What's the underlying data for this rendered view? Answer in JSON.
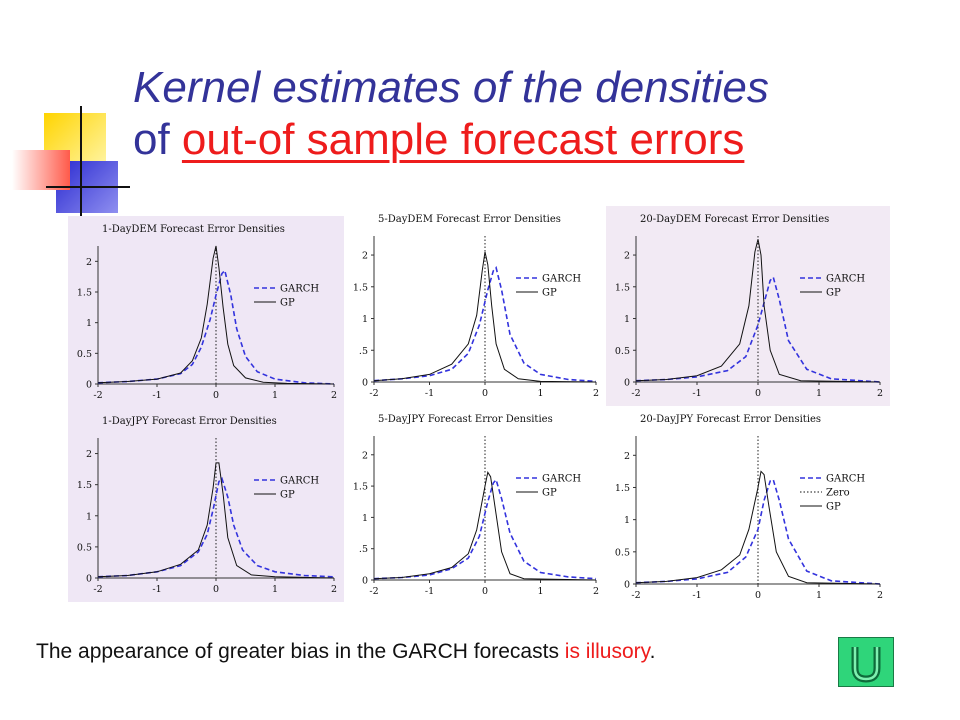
{
  "title": {
    "line1": "Kernel estimates of the densities",
    "line2_plain": "of ",
    "line2_highlight": "out-of sample forecast errors"
  },
  "caption": {
    "plain": "The appearance of greater bias in the GARCH forecasts ",
    "highlight": "is illusory",
    "end": "."
  },
  "nav_button": {
    "icon": "u-turn-return-icon"
  },
  "colors": {
    "title": "#333399",
    "highlight": "#ee1c1c",
    "garch": "#3333dd",
    "gp": "#111111",
    "button": "#2fd57a"
  },
  "chart_data": [
    {
      "type": "line",
      "title": "1-DayDEM Forecast Error Densities",
      "xlim": [
        -2,
        2
      ],
      "ylim": [
        0,
        2.25
      ],
      "xticks": [
        "-2",
        "-1",
        "0",
        "1",
        "2"
      ],
      "yticks": [
        "0",
        "0.5",
        "1",
        "1.5",
        "2"
      ],
      "legend": [
        "GARCH",
        "GP"
      ],
      "zero_line": true,
      "series": [
        {
          "name": "GARCH",
          "style": "dashed",
          "x": [
            -2,
            -1.5,
            -1,
            -0.6,
            -0.4,
            -0.25,
            -0.1,
            0,
            0.1,
            0.15,
            0.25,
            0.35,
            0.5,
            0.7,
            1,
            1.5,
            2
          ],
          "y": [
            0.02,
            0.04,
            0.08,
            0.17,
            0.32,
            0.6,
            1.05,
            1.45,
            1.8,
            1.85,
            1.45,
            0.9,
            0.45,
            0.2,
            0.08,
            0.02,
            0
          ]
        },
        {
          "name": "GP",
          "style": "solid",
          "x": [
            -2,
            -1.5,
            -1,
            -0.6,
            -0.4,
            -0.25,
            -0.15,
            -0.05,
            0,
            0.05,
            0.12,
            0.2,
            0.3,
            0.5,
            0.8,
            1.2,
            2
          ],
          "y": [
            0.02,
            0.04,
            0.08,
            0.18,
            0.38,
            0.75,
            1.3,
            2.05,
            2.25,
            1.9,
            1.25,
            0.65,
            0.3,
            0.1,
            0.03,
            0.01,
            0
          ]
        }
      ]
    },
    {
      "type": "line",
      "title": "5-DayDEM Forecast Error Densities",
      "xlim": [
        -2,
        2
      ],
      "ylim": [
        0,
        2.3
      ],
      "xticks": [
        "-2",
        "-1",
        "0",
        "1",
        "2"
      ],
      "yticks": [
        "0",
        ".5",
        "1",
        "1.5",
        "2"
      ],
      "legend": [
        "GARCH",
        "GP"
      ],
      "zero_line": true,
      "series": [
        {
          "name": "GARCH",
          "style": "dashed",
          "x": [
            -2,
            -1.5,
            -1,
            -0.6,
            -0.3,
            -0.1,
            0.05,
            0.15,
            0.2,
            0.3,
            0.45,
            0.7,
            1,
            1.5,
            2
          ],
          "y": [
            0.02,
            0.05,
            0.1,
            0.2,
            0.45,
            0.9,
            1.45,
            1.75,
            1.8,
            1.45,
            0.75,
            0.3,
            0.12,
            0.04,
            0.01
          ]
        },
        {
          "name": "GP",
          "style": "solid",
          "x": [
            -2,
            -1.5,
            -1,
            -0.6,
            -0.3,
            -0.15,
            -0.05,
            0,
            0.05,
            0.12,
            0.2,
            0.35,
            0.6,
            1,
            2
          ],
          "y": [
            0.02,
            0.05,
            0.12,
            0.28,
            0.6,
            1.05,
            1.75,
            2.05,
            1.85,
            1.2,
            0.6,
            0.2,
            0.05,
            0.01,
            0
          ]
        }
      ]
    },
    {
      "type": "line",
      "title": "20-DayDEM Forecast Error Densities",
      "xlim": [
        -2,
        2
      ],
      "ylim": [
        0,
        2.3
      ],
      "xticks": [
        "-2",
        "-1",
        "0",
        "1",
        "2"
      ],
      "yticks": [
        "0",
        "0.5",
        "1",
        "1.5",
        "2"
      ],
      "legend": [
        "GARCH",
        "GP"
      ],
      "zero_line": true,
      "series": [
        {
          "name": "GARCH",
          "style": "dashed",
          "x": [
            -2,
            -1.5,
            -1,
            -0.5,
            -0.2,
            0,
            0.1,
            0.2,
            0.25,
            0.35,
            0.5,
            0.8,
            1.2,
            2
          ],
          "y": [
            0.02,
            0.04,
            0.08,
            0.18,
            0.4,
            0.9,
            1.25,
            1.6,
            1.65,
            1.3,
            0.65,
            0.2,
            0.05,
            0
          ]
        },
        {
          "name": "GP",
          "style": "solid",
          "x": [
            -2,
            -1.5,
            -1,
            -0.6,
            -0.3,
            -0.15,
            -0.05,
            0,
            0.05,
            0.1,
            0.2,
            0.35,
            0.7,
            2
          ],
          "y": [
            0.02,
            0.04,
            0.1,
            0.25,
            0.6,
            1.2,
            2.05,
            2.25,
            2.0,
            1.2,
            0.5,
            0.12,
            0.02,
            0
          ]
        }
      ]
    },
    {
      "type": "line",
      "title": "1-DayJPY Forecast Error Densities",
      "xlim": [
        -2,
        2
      ],
      "ylim": [
        0,
        2.25
      ],
      "xticks": [
        "-2",
        "-1",
        "0",
        "1",
        "2"
      ],
      "yticks": [
        "0",
        "0.5",
        "1",
        "1.5",
        "2"
      ],
      "legend": [
        "GARCH",
        "GP"
      ],
      "zero_line": true,
      "series": [
        {
          "name": "GARCH",
          "style": "dashed",
          "x": [
            -2,
            -1.5,
            -1,
            -0.6,
            -0.3,
            -0.15,
            -0.05,
            0.05,
            0.1,
            0.2,
            0.3,
            0.45,
            0.7,
            1,
            1.5,
            2
          ],
          "y": [
            0.02,
            0.04,
            0.1,
            0.2,
            0.42,
            0.7,
            1.1,
            1.55,
            1.6,
            1.3,
            0.85,
            0.45,
            0.2,
            0.1,
            0.04,
            0.02
          ]
        },
        {
          "name": "GP",
          "style": "solid",
          "x": [
            -2,
            -1.5,
            -1,
            -0.6,
            -0.3,
            -0.15,
            -0.05,
            0,
            0.05,
            0.12,
            0.2,
            0.35,
            0.6,
            1,
            2
          ],
          "y": [
            0.02,
            0.04,
            0.1,
            0.22,
            0.45,
            0.85,
            1.45,
            1.85,
            1.85,
            1.35,
            0.65,
            0.2,
            0.05,
            0.02,
            0
          ]
        }
      ]
    },
    {
      "type": "line",
      "title": "5-DayJPY Forecast Error Densities",
      "xlim": [
        -2,
        2
      ],
      "ylim": [
        0,
        2.3
      ],
      "xticks": [
        "-2",
        "-1",
        "0",
        "1",
        "2"
      ],
      "yticks": [
        "0",
        ".5",
        "1",
        "1.5",
        "2"
      ],
      "legend": [
        "GARCH",
        "GP"
      ],
      "zero_line": true,
      "series": [
        {
          "name": "GARCH",
          "style": "dashed",
          "x": [
            -2,
            -1.5,
            -1,
            -0.6,
            -0.3,
            -0.1,
            0.05,
            0.15,
            0.2,
            0.3,
            0.45,
            0.7,
            1,
            1.5,
            2
          ],
          "y": [
            0.02,
            0.04,
            0.08,
            0.18,
            0.35,
            0.7,
            1.25,
            1.55,
            1.6,
            1.3,
            0.75,
            0.3,
            0.12,
            0.05,
            0.02
          ]
        },
        {
          "name": "GP",
          "style": "solid",
          "x": [
            -2,
            -1.5,
            -1,
            -0.6,
            -0.3,
            -0.15,
            0,
            0.05,
            0.1,
            0.2,
            0.3,
            0.45,
            0.7,
            2
          ],
          "y": [
            0.02,
            0.04,
            0.1,
            0.2,
            0.42,
            0.8,
            1.5,
            1.72,
            1.65,
            1.05,
            0.45,
            0.1,
            0.02,
            0
          ]
        }
      ]
    },
    {
      "type": "line",
      "title": "20-DayJPY Forecast Error Densities",
      "xlim": [
        -2,
        2
      ],
      "ylim": [
        0,
        2.3
      ],
      "xticks": [
        "-2",
        "-1",
        "0",
        "1",
        "2"
      ],
      "yticks": [
        "0",
        "0.5",
        "1",
        "1.5",
        "2"
      ],
      "legend": [
        "GARCH",
        "Zero",
        "GP"
      ],
      "zero_line": true,
      "series": [
        {
          "name": "GARCH",
          "style": "dashed",
          "x": [
            -2,
            -1.5,
            -1,
            -0.5,
            -0.2,
            0,
            0.1,
            0.2,
            0.25,
            0.35,
            0.5,
            0.8,
            1.2,
            2
          ],
          "y": [
            0.02,
            0.04,
            0.08,
            0.18,
            0.42,
            0.85,
            1.3,
            1.6,
            1.62,
            1.3,
            0.7,
            0.2,
            0.05,
            0
          ]
        },
        {
          "name": "GP",
          "style": "solid",
          "x": [
            -2,
            -1.5,
            -1,
            -0.6,
            -0.3,
            -0.15,
            0,
            0.05,
            0.1,
            0.18,
            0.3,
            0.5,
            0.8,
            2
          ],
          "y": [
            0.02,
            0.04,
            0.1,
            0.22,
            0.45,
            0.85,
            1.5,
            1.75,
            1.7,
            1.2,
            0.5,
            0.12,
            0.02,
            0
          ]
        }
      ]
    }
  ]
}
